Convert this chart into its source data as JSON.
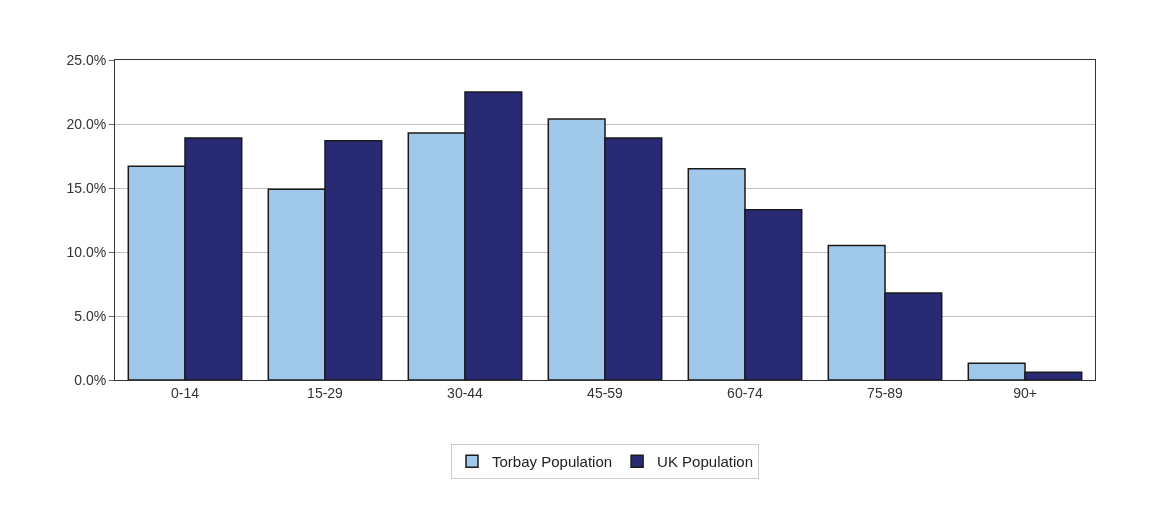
{
  "chart_data": {
    "type": "bar",
    "categories": [
      "0-14",
      "15-29",
      "30-44",
      "45-59",
      "60-74",
      "75-89",
      "90+"
    ],
    "series": [
      {
        "name": "Torbay Population",
        "color": "#a0c8ea",
        "values": [
          16.7,
          14.9,
          19.3,
          20.4,
          16.5,
          10.5,
          1.3
        ]
      },
      {
        "name": "UK Population",
        "color": "#282a74",
        "values": [
          18.9,
          18.7,
          22.5,
          18.9,
          13.3,
          6.8,
          0.6
        ]
      }
    ],
    "ylim": [
      0,
      25
    ],
    "yticks": [
      {
        "value": 0,
        "label": "0.0%"
      },
      {
        "value": 5,
        "label": "5.0%"
      },
      {
        "value": 10,
        "label": "10.0%"
      },
      {
        "value": 15,
        "label": "15.0%"
      },
      {
        "value": 20,
        "label": "20.0%"
      },
      {
        "value": 25,
        "label": "25.0%"
      }
    ],
    "grid": "y",
    "legend": "bottom"
  }
}
